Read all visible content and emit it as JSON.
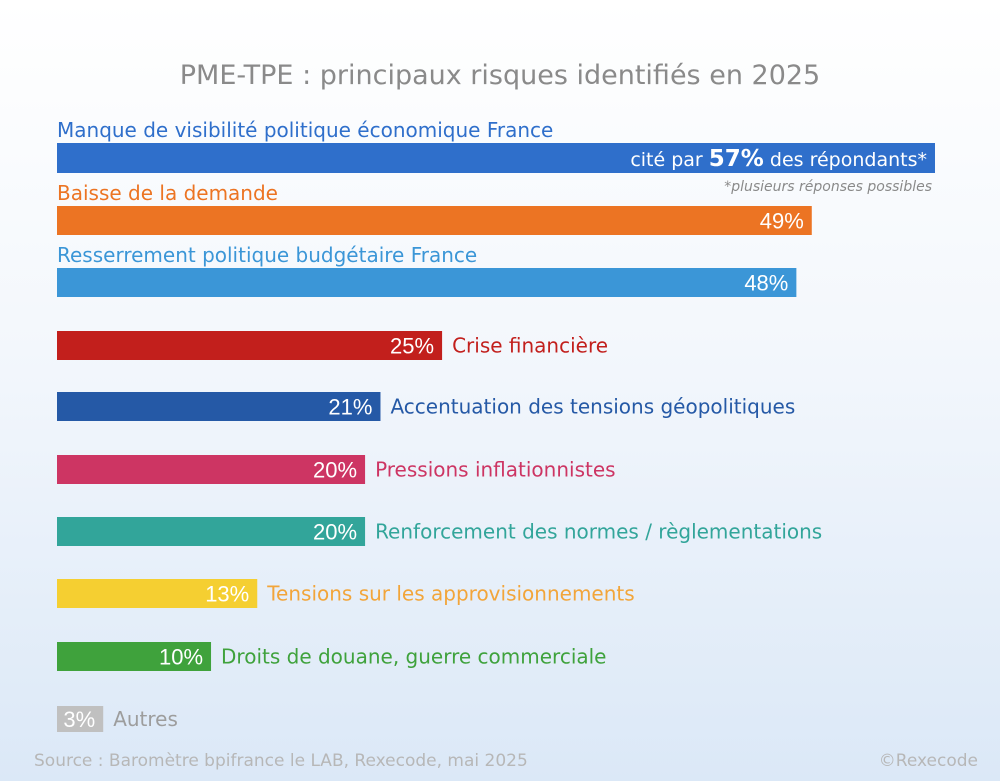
{
  "chart_data": {
    "type": "bar",
    "orientation": "horizontal",
    "title": "PME-TPE : principaux risques identifiés en 2025",
    "categories": [
      "Manque de visibilité politique économique  France",
      "Baisse de la demande",
      "Resserrement politique budgétaire France",
      "Crise financière",
      "Accentuation des tensions géopolitiques",
      "Pressions inflationnistes",
      "Renforcement des normes / règlementations",
      "Tensions sur les approvisionnements",
      "Droits de douane, guerre commerciale",
      "Autres"
    ],
    "values": [
      57,
      49,
      48,
      25,
      21,
      20,
      20,
      13,
      10,
      3
    ],
    "value_labels": [
      "57%",
      "49%",
      "48%",
      "25%",
      "21%",
      "20%",
      "20%",
      "13%",
      "10%",
      "3%"
    ],
    "colors": [
      "#2f6fcb",
      "#ec7423",
      "#3b96d7",
      "#c21f1c",
      "#2559a6",
      "#cd3563",
      "#32a59a",
      "#f5cf31",
      "#3fa23c",
      "#c0c0c0"
    ],
    "label_colors": [
      "#2f6fcb",
      "#ec7423",
      "#3b96d7",
      "#c21f1c",
      "#2559a6",
      "#cd3563",
      "#32a59a",
      "#f2a53a",
      "#3fa23c",
      "#9d9d9d"
    ],
    "first_bar_text": {
      "prefix": "cité par ",
      "value": "57%",
      "suffix": " des répondants*"
    },
    "note": "*plusieurs réponses possibles",
    "xlim": [
      0,
      57
    ],
    "grid": false,
    "legend": "none"
  },
  "footer": {
    "source": "Source : Baromètre bpifrance le LAB, Rexecode, mai 2025",
    "copyright": "©Rexecode"
  }
}
